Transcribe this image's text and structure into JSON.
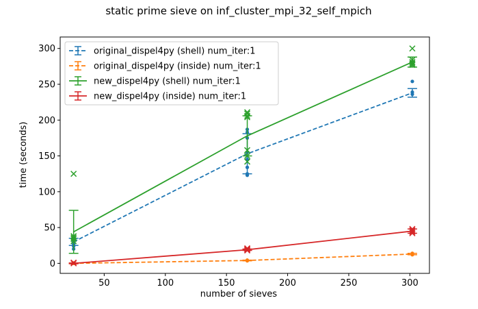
{
  "chart_data": {
    "type": "line",
    "title": "static prime sieve on inf_cluster_mpi_32_self_mpich",
    "xlabel": "number of sieves",
    "ylabel": "time (seconds)",
    "xlim": [
      14,
      316
    ],
    "ylim": [
      -14,
      316
    ],
    "x_ticks": [
      50,
      100,
      150,
      200,
      250,
      300
    ],
    "y_ticks": [
      0,
      50,
      100,
      150,
      200,
      250,
      300
    ],
    "grid": false,
    "legend_position": "top-left",
    "series": [
      {
        "name": "original_dispel4py (shell) num_iter:1",
        "color": "#1f77b4",
        "line_style": "dashed",
        "marker": "dot",
        "x": [
          25,
          167,
          302
        ],
        "y": [
          30,
          153,
          238
        ],
        "err": [
          5,
          28,
          6
        ],
        "points": [
          [
            25,
            20
          ],
          [
            25,
            24
          ],
          [
            25,
            27
          ],
          [
            25,
            30
          ],
          [
            25,
            33
          ],
          [
            25,
            35
          ],
          [
            167,
            123
          ],
          [
            167,
            125
          ],
          [
            167,
            134
          ],
          [
            167,
            145
          ],
          [
            167,
            155
          ],
          [
            167,
            175
          ],
          [
            167,
            183
          ],
          [
            167,
            187
          ],
          [
            302,
            236
          ],
          [
            302,
            239
          ],
          [
            302,
            254
          ]
        ]
      },
      {
        "name": "original_dispel4py (inside) num_iter:1",
        "color": "#ff7f0e",
        "line_style": "dashed",
        "marker": "dot",
        "x": [
          25,
          167,
          302
        ],
        "y": [
          0,
          4,
          13
        ],
        "err": [
          0.5,
          0.5,
          1
        ],
        "points": [
          [
            25,
            0
          ],
          [
            25,
            0.5
          ],
          [
            167,
            3.5
          ],
          [
            167,
            4
          ],
          [
            167,
            4.5
          ],
          [
            302,
            12
          ],
          [
            302,
            13
          ],
          [
            302,
            14
          ]
        ]
      },
      {
        "name": "new_dispel4py (shell) num_iter:1",
        "color": "#2ca02c",
        "line_style": "solid",
        "marker": "x",
        "x": [
          25,
          167,
          302
        ],
        "y": [
          44,
          178,
          281
        ],
        "err": [
          30,
          28,
          7
        ],
        "points": [
          [
            25,
            125
          ],
          [
            25,
            38
          ],
          [
            25,
            36
          ],
          [
            25,
            34
          ],
          [
            25,
            31
          ],
          [
            167,
            211
          ],
          [
            167,
            209
          ],
          [
            167,
            206
          ],
          [
            167,
            204
          ],
          [
            167,
            158
          ],
          [
            167,
            150
          ],
          [
            167,
            142
          ],
          [
            302,
            300
          ],
          [
            302,
            284
          ],
          [
            302,
            281
          ],
          [
            302,
            279
          ],
          [
            302,
            277
          ]
        ]
      },
      {
        "name": "new_dispel4py (inside) num_iter:1",
        "color": "#d62728",
        "line_style": "solid",
        "marker": "x",
        "x": [
          25,
          167,
          302
        ],
        "y": [
          0,
          19,
          45
        ],
        "err": [
          0.5,
          1,
          3
        ],
        "points": [
          [
            25,
            0
          ],
          [
            25,
            1
          ],
          [
            167,
            18
          ],
          [
            167,
            19
          ],
          [
            167,
            20
          ],
          [
            167,
            21
          ],
          [
            302,
            42
          ],
          [
            302,
            44
          ],
          [
            302,
            46
          ],
          [
            302,
            48
          ]
        ]
      }
    ]
  }
}
